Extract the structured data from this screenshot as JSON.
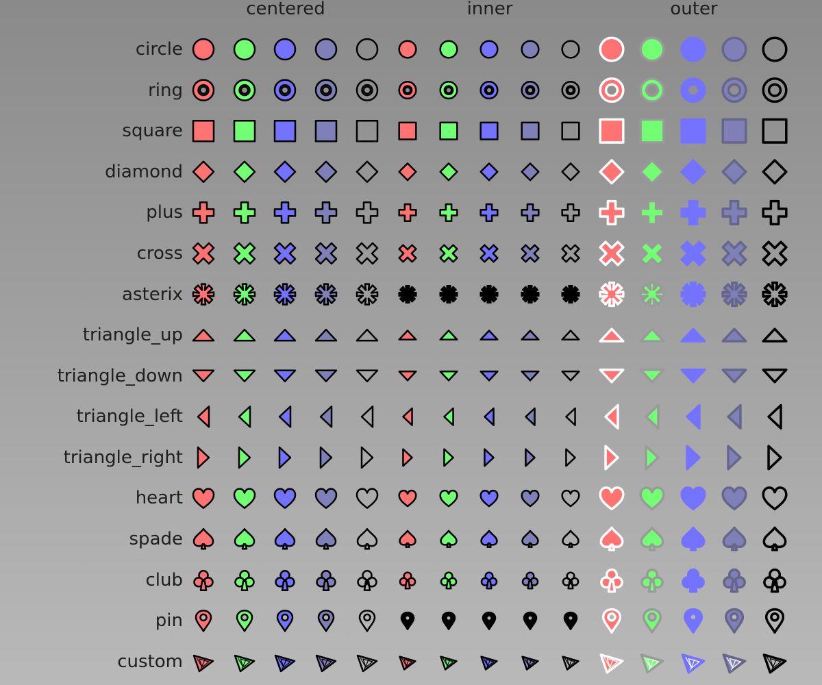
{
  "groups": [
    {
      "title": "centered",
      "mode": "centered"
    },
    {
      "title": "inner",
      "mode": "inner"
    },
    {
      "title": "outer",
      "mode": "outer"
    }
  ],
  "rows": [
    {
      "label": "circle",
      "shape": "circle"
    },
    {
      "label": "ring",
      "shape": "ring"
    },
    {
      "label": "square",
      "shape": "square"
    },
    {
      "label": "diamond",
      "shape": "diamond"
    },
    {
      "label": "plus",
      "shape": "plus"
    },
    {
      "label": "cross",
      "shape": "cross"
    },
    {
      "label": "asterix",
      "shape": "asterix"
    },
    {
      "label": "triangle_up",
      "shape": "triangle_up"
    },
    {
      "label": "triangle_down",
      "shape": "triangle_down"
    },
    {
      "label": "triangle_left",
      "shape": "triangle_left"
    },
    {
      "label": "triangle_right",
      "shape": "triangle_right"
    },
    {
      "label": "heart",
      "shape": "heart"
    },
    {
      "label": "spade",
      "shape": "spade"
    },
    {
      "label": "club",
      "shape": "club"
    },
    {
      "label": "pin",
      "shape": "pin"
    },
    {
      "label": "custom",
      "shape": "custom"
    }
  ],
  "styles": [
    {
      "fill": "#ff7373",
      "centered_stroke": "#000000",
      "outer_stroke": "#ffffff"
    },
    {
      "fill": "#73ff73",
      "centered_stroke": "#000000",
      "outer_stroke": "#9a9a9a"
    },
    {
      "fill": "#7373ff",
      "centered_stroke": "#000000",
      "outer_stroke": "#7373ff"
    },
    {
      "fill": "#8080b8",
      "centered_stroke": "#000000",
      "outer_stroke": "#66668a"
    },
    {
      "fill": "none",
      "centered_stroke": "#000000",
      "outer_stroke": "#000000"
    }
  ],
  "colors": {
    "background_top": "#8a8a8a",
    "background_bottom": "#b9b9b9",
    "text": "#1e1e1e"
  }
}
